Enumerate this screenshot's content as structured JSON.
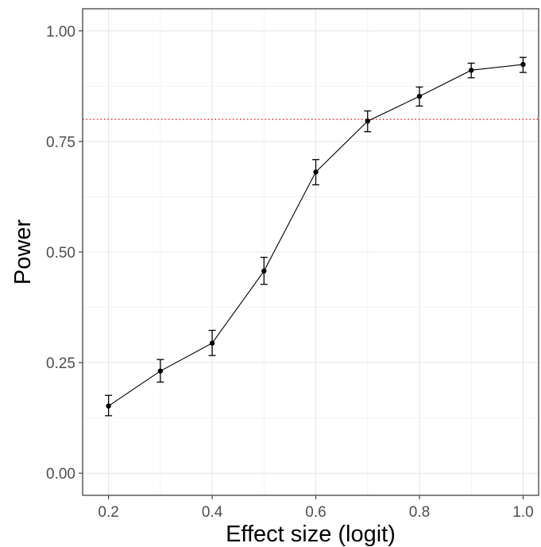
{
  "chart_data": {
    "type": "line",
    "xlabel": "Effect size (logit)",
    "ylabel": "Power",
    "xlim": [
      0.15,
      1.03
    ],
    "ylim": [
      -0.05,
      1.05
    ],
    "x_ticks": [
      0.2,
      0.4,
      0.6,
      0.8,
      1.0
    ],
    "x_tick_labels": [
      "0.2",
      "0.4",
      "0.6",
      "0.8",
      "1.0"
    ],
    "y_ticks": [
      0.0,
      0.25,
      0.5,
      0.75,
      1.0
    ],
    "y_tick_labels": [
      "0.00",
      "0.25",
      "0.50",
      "0.75",
      "1.00"
    ],
    "grid": true,
    "reference_line": {
      "y": 0.8,
      "style": "dotted",
      "color": "#ff0000"
    },
    "series": [
      {
        "x": [
          0.2,
          0.3,
          0.4,
          0.5,
          0.6,
          0.7,
          0.8,
          0.9,
          1.0
        ],
        "y": [
          0.152,
          0.231,
          0.294,
          0.457,
          0.681,
          0.796,
          0.852,
          0.911,
          0.924
        ],
        "err_low": [
          0.13,
          0.206,
          0.266,
          0.427,
          0.652,
          0.772,
          0.83,
          0.894,
          0.906
        ],
        "err_high": [
          0.176,
          0.257,
          0.323,
          0.488,
          0.709,
          0.819,
          0.873,
          0.927,
          0.94
        ]
      }
    ]
  }
}
